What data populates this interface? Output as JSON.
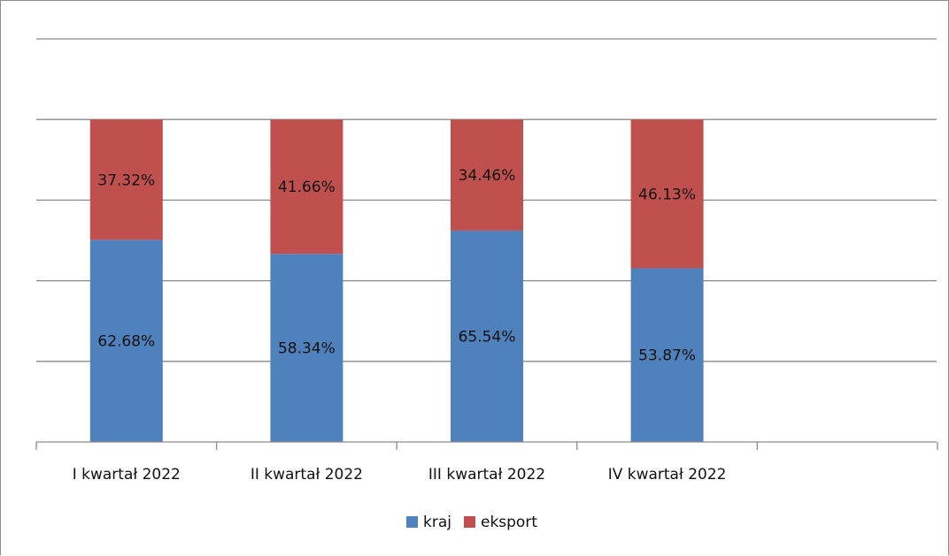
{
  "chart_data": {
    "type": "bar",
    "stacked": true,
    "categories": [
      "I kwartał 2022",
      "II kwartał 2022",
      "III kwartał 2022",
      "IV kwartał 2022"
    ],
    "series": [
      {
        "name": "kraj",
        "values": [
          62.68,
          58.34,
          65.54,
          53.87
        ],
        "labels": [
          "62.68%",
          "58.34%",
          "65.54%",
          "53.87%"
        ],
        "color": "#4f81bd"
      },
      {
        "name": "eksport",
        "values": [
          37.32,
          41.66,
          34.46,
          46.13
        ],
        "labels": [
          "37.32%",
          "41.66%",
          "34.46%",
          "46.13%"
        ],
        "color": "#c0504d"
      }
    ],
    "ylim": [
      0,
      125
    ],
    "grid": true,
    "legend": "bottom"
  }
}
